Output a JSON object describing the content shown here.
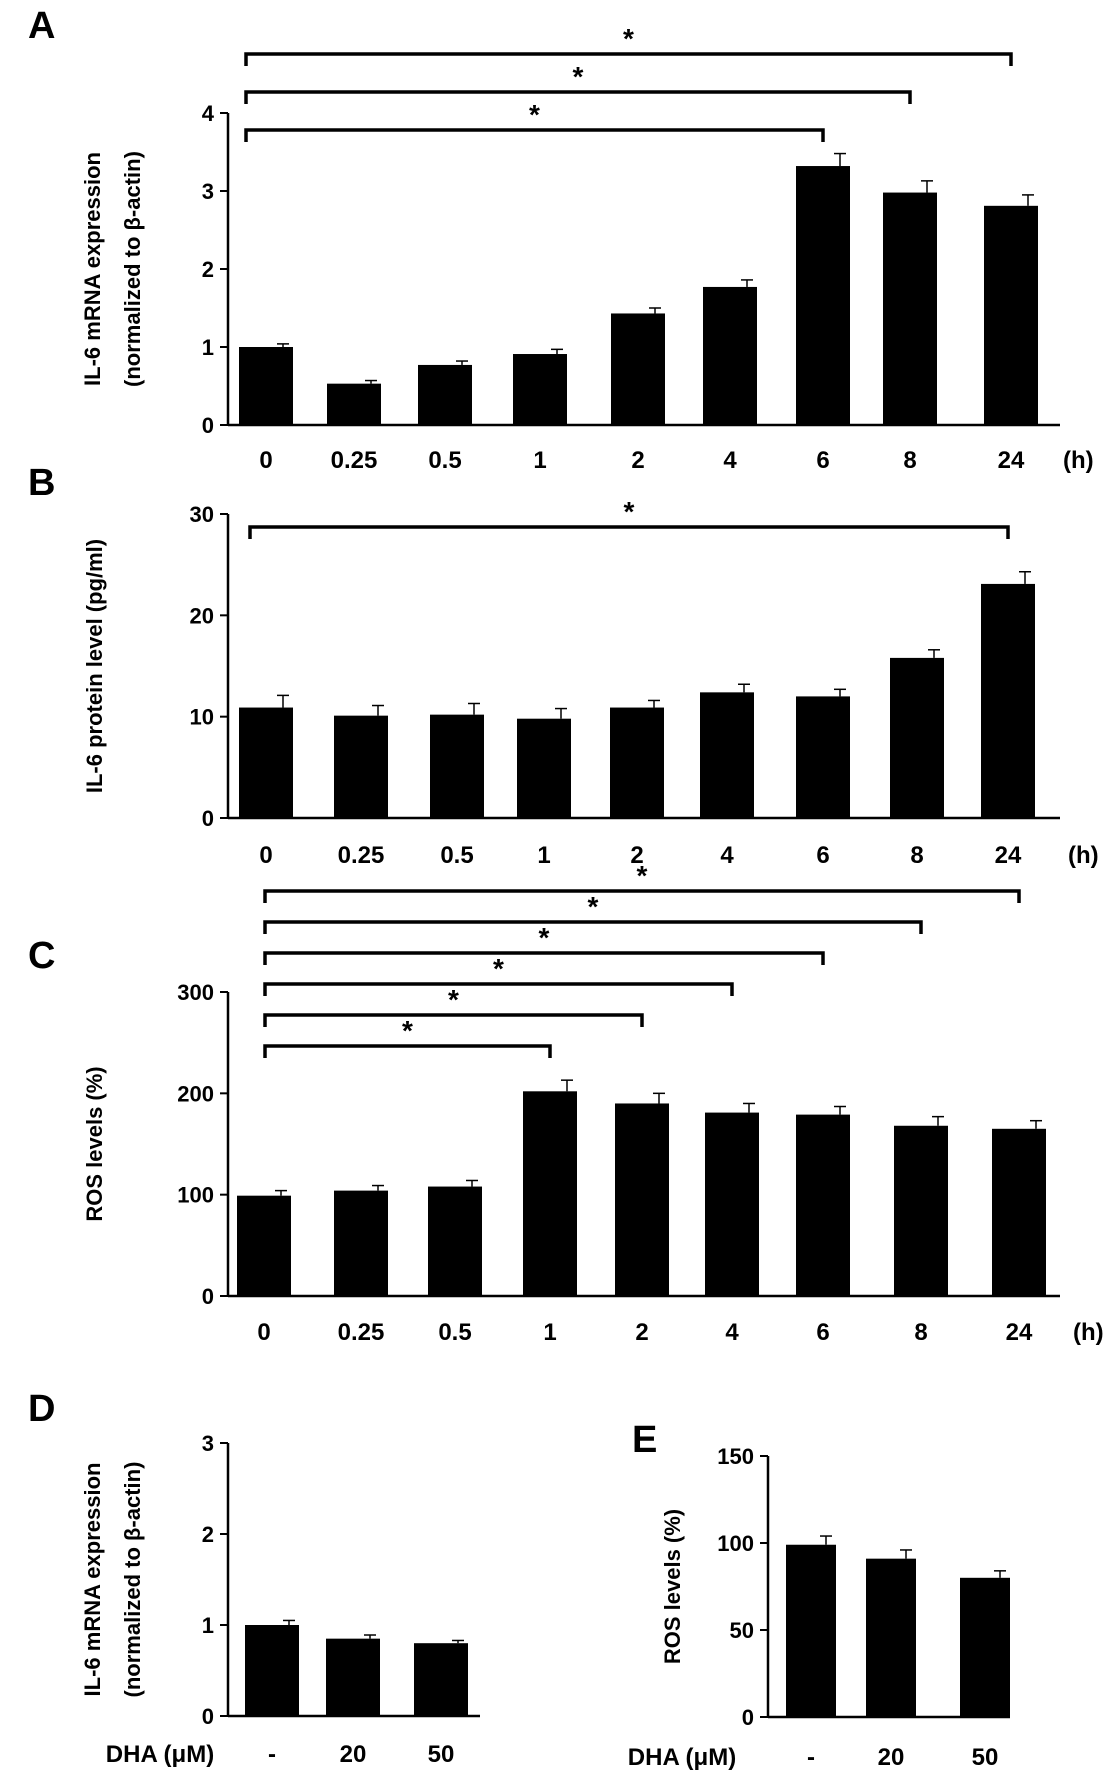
{
  "chart_data": [
    {
      "panel": "A",
      "type": "bar",
      "ylabel_line1": "IL-6 mRNA expression",
      "ylabel_line2": "(normalized to β-actin)",
      "categories": [
        "0",
        "0.25",
        "0.5",
        "1",
        "2",
        "4",
        "6",
        "8",
        "24"
      ],
      "unit": "(h)",
      "values": [
        1.0,
        0.53,
        0.77,
        0.91,
        1.43,
        1.77,
        3.32,
        2.98,
        2.81
      ],
      "errors": [
        0.04,
        0.04,
        0.05,
        0.06,
        0.07,
        0.09,
        0.16,
        0.15,
        0.14
      ],
      "ylim": [
        0,
        4
      ],
      "yticks": [
        "0",
        "1",
        "2",
        "3",
        "4"
      ],
      "significance": [
        {
          "from": 0,
          "to": 6,
          "label": "*"
        },
        {
          "from": 0,
          "to": 7,
          "label": "*"
        },
        {
          "from": 0,
          "to": 8,
          "label": "*"
        }
      ]
    },
    {
      "panel": "B",
      "type": "bar",
      "ylabel_line1": "IL-6 protein level (pg/ml)",
      "ylabel_line2": "",
      "categories": [
        "0",
        "0.25",
        "0.5",
        "1",
        "2",
        "4",
        "6",
        "8",
        "24"
      ],
      "unit": "(h)",
      "values": [
        10.9,
        10.1,
        10.2,
        9.8,
        10.9,
        12.4,
        12.0,
        15.8,
        23.1
      ],
      "errors": [
        1.2,
        1.0,
        1.1,
        1.0,
        0.7,
        0.8,
        0.7,
        0.8,
        1.2
      ],
      "ylim": [
        0,
        30
      ],
      "yticks": [
        "0",
        "10",
        "20",
        "30"
      ],
      "significance": [
        {
          "from": 0,
          "to": 8,
          "label": "*"
        }
      ]
    },
    {
      "panel": "C",
      "type": "bar",
      "ylabel_line1": "ROS  levels (%)",
      "ylabel_line2": "",
      "categories": [
        "0",
        "0.25",
        "0.5",
        "1",
        "2",
        "4",
        "6",
        "8",
        "24"
      ],
      "unit": "(h)",
      "values": [
        99,
        104,
        108,
        202,
        190,
        181,
        179,
        168,
        165
      ],
      "errors": [
        5,
        5,
        6,
        11,
        10,
        9,
        8,
        9,
        8
      ],
      "ylim": [
        0,
        300
      ],
      "yticks": [
        "0",
        "100",
        "200",
        "300"
      ],
      "significance": [
        {
          "from": 0,
          "to": 3,
          "label": "*"
        },
        {
          "from": 0,
          "to": 4,
          "label": "*"
        },
        {
          "from": 0,
          "to": 5,
          "label": "*"
        },
        {
          "from": 0,
          "to": 6,
          "label": "*"
        },
        {
          "from": 0,
          "to": 7,
          "label": "*"
        },
        {
          "from": 0,
          "to": 8,
          "label": "*"
        }
      ]
    },
    {
      "panel": "D",
      "type": "bar",
      "ylabel_line1": "IL-6 mRNA expression",
      "ylabel_line2": "(normalized to β-actin)",
      "xlabel": "DHA (μM)",
      "categories": [
        "-",
        "20",
        "50"
      ],
      "values": [
        1.0,
        0.85,
        0.8
      ],
      "errors": [
        0.05,
        0.04,
        0.03
      ],
      "ylim": [
        0,
        3
      ],
      "yticks": [
        "0",
        "1",
        "2",
        "3"
      ],
      "significance": []
    },
    {
      "panel": "E",
      "type": "bar",
      "ylabel_line1": "ROS  levels (%)",
      "ylabel_line2": "",
      "xlabel": "DHA (μM)",
      "categories": [
        "-",
        "20",
        "50"
      ],
      "values": [
        99,
        91,
        80
      ],
      "errors": [
        5,
        5,
        4
      ],
      "ylim": [
        0,
        150
      ],
      "yticks": [
        "0",
        "50",
        "100",
        "150"
      ],
      "significance": []
    }
  ]
}
